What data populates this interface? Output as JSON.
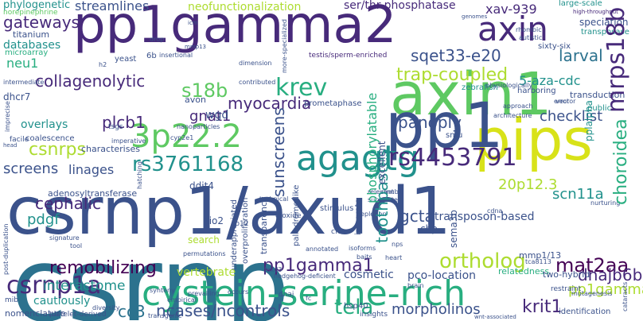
{
  "palette": {
    "navy": "#472a7a",
    "indigo": "#3b528b",
    "blue": "#2c728e",
    "teal": "#21918c",
    "green": "#28ae80",
    "lime": "#5ec962",
    "yellowgreen": "#addc30",
    "yellow": "#d8e219",
    "purple": "#440154"
  },
  "words": {
    "csrnp": "csrnp",
    "csrnp1_axud1": "csrnp1/axud1",
    "pp1gamma2": "pp1gamma2",
    "axin1": "axin1",
    "pips": "pips",
    "pp1": "pp1",
    "axin": "axin",
    "agagtg": "agagtg",
    "p22": "3p22.2",
    "rs3761168": "rs3761168",
    "rs4453791": "rs4453791",
    "cysteine_serine": "cystein-serine-rich",
    "csrnp1a": "csrnp1a",
    "remobilizing": "remobilizing",
    "pp1gamma1": "pp1gamma1",
    "ortholog": "ortholog",
    "mat2aa": "mat2aa",
    "cc3": "cc3",
    "ncases": "ncases/ncontrols",
    "tela": "tela",
    "morpholinos": "morpholinos",
    "krit1": "krit1",
    "pp1gamma": "pp1gamma",
    "dnajb6b": "dnajb6b",
    "interactome": "interactome",
    "krev": "krev",
    "s18b": "s18b",
    "mrps18b": "mrps18b",
    "choroidea": "choroidea",
    "trap_coupled": "trap-coupled",
    "xav939": "xav-939",
    "larval": "larval",
    "sqet33": "sqet33-e20",
    "aza_cdc": "5-aza-cdc",
    "collagenolytic": "collagenolytic",
    "myocardia": "myocardia",
    "sunscreens": "sunscreens",
    "toothpastes": "toothpastes",
    "gcta": "gcta",
    "transposon_based": "transposon-based",
    "cephalic": "cephalic",
    "csnrps": "csnrps",
    "pdgf": "pdgf",
    "plcb1": "plcb1",
    "screens": "screens",
    "linages": "linages",
    "gnat1": "gnat1",
    "panoply": "panoply",
    "checklist": "checklist",
    "p20p12": "20p12.3",
    "scn11a": "scn11a",
    "phosphorylatable": "phosphorylatable",
    "gateways": "gateways",
    "neu1": "neu1",
    "streamlines": "streamlines",
    "phylogenetic": "phylogenetic",
    "norepinephrine": "norepinephrine",
    "titanium": "titanium",
    "databases": "databases",
    "microarray": "microarray",
    "neofunctionalization": "neofunctionalization",
    "ser_thr": "ser/thr-phosphatase",
    "speciation": "speciation",
    "transposase": "transposase",
    "large_scale": "large-scale",
    "high_throughput": "high-throughput",
    "genomes": "genomes",
    "testis": "testis/sperm-enriched",
    "sixty_six": "sixty-six",
    "zebrafish": "zebrafish",
    "pplalpha": "pplalpha",
    "transduction": "transduction",
    "public": "public",
    "vertebrate": "vertebrate",
    "cosmetic": "cosmetic",
    "pco_location": "pco-location",
    "mmp1_13": "mmp1/13",
    "relatedness": "relatedness",
    "two_hybrid": "two-hybrid",
    "restraint": "restraint",
    "identification": "identification",
    "nomenclature": "nomenclature",
    "cautiously": "cautiously",
    "hsp40": "hsp40",
    "dnaj": "dnaj",
    "transgenic": "transgenic",
    "overlays": "overlays",
    "coalescence": "coalescence",
    "facile": "facile",
    "head": "head",
    "characterises": "characterises",
    "adenosyl": "adenosyltransferase",
    "search": "search",
    "permutations": "permutations",
    "ddit4": "ddit4",
    "tio2": "tio2",
    "wgd": "wgd",
    "avon": "avon",
    "smu": "smu",
    "chp": "chp",
    "sema3b": "sema3b",
    "excellent": "excellent",
    "integrate": "integrate",
    "stimulus": "stimulus",
    "cfos": "cfos",
    "isoforms": "isoforms",
    "baits": "baits",
    "heart": "heart",
    "nps": "nps",
    "dhcr7": "dhcr7",
    "prometaphase": "prometaphase",
    "technical": "technical",
    "substrate": "substrate",
    "harboring": "harboring",
    "nurturing": "nurturing",
    "depletion": "depletion",
    "six6": "6b",
    "yeast": "yeast",
    "tsgs": "tsgs",
    "cyp2e1": "cyp2e1",
    "hatching": "hatching",
    "morphology": "empirical",
    "diversity": "diversity",
    "platelet": "platelet-derived",
    "mib": "mib",
    "foxd3": "foxd3",
    "hedgehog": "hedgehog-deficient",
    "wnt": "wnt-associated",
    "insights": "insights",
    "ctnnb1": "ctnnb1",
    "cdna": "cdna",
    "rhombic": "rhombic",
    "autistic": "autistic",
    "vector": "vector",
    "error": "error",
    "approach": "approach",
    "architecture": "architecture",
    "intermediate": "intermediate",
    "imperative": "imperative",
    "imprecise": "imprecise",
    "drop": "drop",
    "signature": "signature",
    "tool": "tool",
    "post_duplication": "post-duplication",
    "overproliferation": "overproliferation",
    "underappreciated": "underappreciated",
    "transparency": "transparency",
    "nanoparticles": "nanoparticles",
    "palindrome": "palindrome-like",
    "dioxide": "dioxide",
    "relevant": "relevant",
    "mutagenesis": "mutagenesis",
    "tca8113": "tca8113",
    "prevailing": "prevailing",
    "occurs": "occurs",
    "synteny": "synteny",
    "annotated": "annotated",
    "brain": "brain",
    "fc": "fc",
    "cataracts": "cataracts",
    "to12": "to12",
    "insertional": "insertional",
    "more_specialized": "more-specialized",
    "physiologically": "physiologically",
    "contributed": "contributed",
    "dimension": "dimension",
    "icm": "icm",
    "mmp13": "mmp13",
    "h2": "h2"
  }
}
